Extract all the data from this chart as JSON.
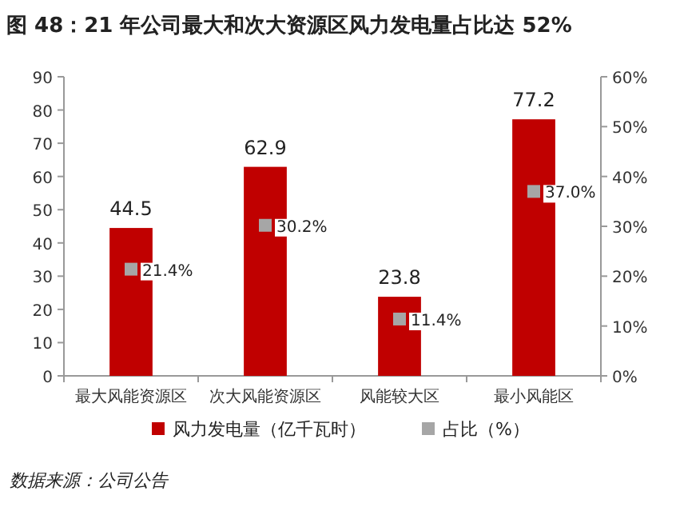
{
  "chart_data": {
    "type": "bar",
    "title": "图 48：21 年公司最大和次大资源区风力发电量占比达 52%",
    "categories": [
      "最大风能资源区",
      "次大风能资源区",
      "风能较大区",
      "最小风能区"
    ],
    "series": [
      {
        "name": "风力发电量（亿千瓦时）",
        "color": "#c00000",
        "values": [
          44.5,
          62.9,
          23.8,
          77.2
        ],
        "value_labels": [
          "44.5",
          "62.9",
          "23.8",
          "77.2"
        ]
      },
      {
        "name": "占比（%）",
        "type": "scatter",
        "axis": "y2",
        "color": "#a6a6a6",
        "marker": "square",
        "values": [
          21.4,
          30.2,
          11.4,
          37.0
        ],
        "value_labels": [
          "21.4%",
          "30.2%",
          "11.4%",
          "37.0%"
        ]
      }
    ],
    "ylim": [
      0,
      90
    ],
    "yticks": [
      0,
      10,
      20,
      30,
      40,
      50,
      60,
      70,
      80,
      90
    ],
    "y2lim": [
      0,
      60
    ],
    "y2ticks": [
      {
        "value": 0,
        "label": "0%"
      },
      {
        "value": 10,
        "label": "10%"
      },
      {
        "value": 20,
        "label": "20%"
      },
      {
        "value": 30,
        "label": "30%"
      },
      {
        "value": 40,
        "label": "40%"
      },
      {
        "value": 50,
        "label": "50%"
      },
      {
        "value": 60,
        "label": "60%"
      }
    ],
    "grid": false,
    "legend": "bottom",
    "annotations": [
      "数据来源：公司公告"
    ]
  }
}
